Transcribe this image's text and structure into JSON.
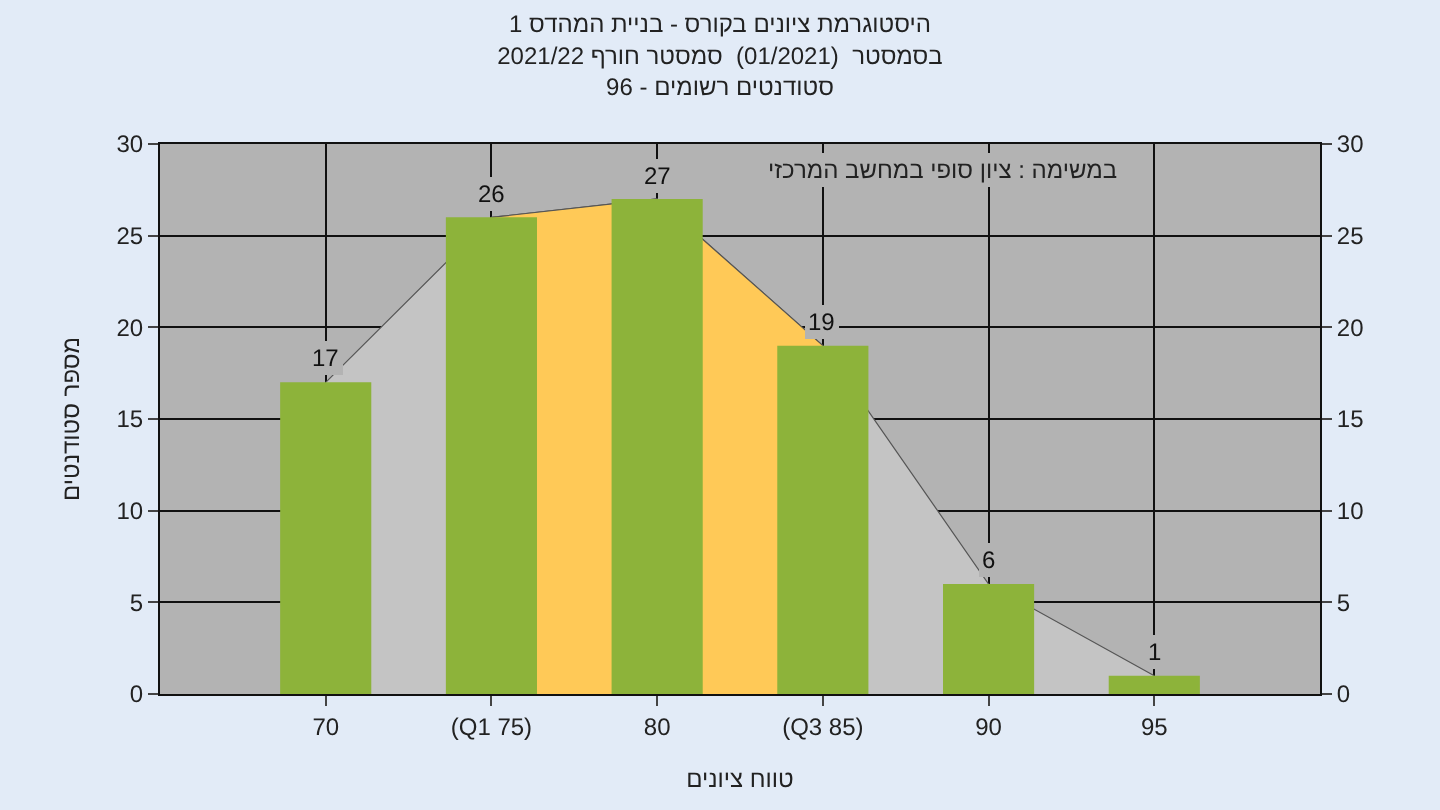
{
  "chart_data": {
    "type": "bar",
    "title": "היסטוגרמת ציונים בקורס - בניית המהדס 1\nבסמסטר  (01/2021)  סמסטר חורף 2021/22\nסטודנטים רשומים - 96",
    "xlabel": "טווח ציונים",
    "ylabel": "מספר סטודנטים",
    "annotations": [
      "במשימה : ציון סופי במחשב המרכזי"
    ],
    "categories": [
      "70",
      "(Q1 75)",
      "80",
      "(Q3 85)",
      "90",
      "95"
    ],
    "series": [
      {
        "type": "area",
        "color": "#c4c4c4",
        "values": [
          17,
          26,
          27,
          19,
          6,
          1
        ]
      },
      {
        "type": "area",
        "color": "#ffc957",
        "values": [
          null,
          26,
          27,
          19,
          null,
          null
        ]
      },
      {
        "color": "#8db33a",
        "values": [
          17,
          26,
          27,
          19,
          6,
          1
        ],
        "value_labels": [
          "17",
          "26",
          "27",
          "19",
          "6",
          "1"
        ]
      }
    ],
    "ylim": [
      0,
      30
    ],
    "yticks": [
      0,
      5,
      10,
      15,
      20,
      25,
      30
    ],
    "y2lim": [
      0,
      30
    ],
    "y2ticks": [
      0,
      5,
      10,
      15,
      20,
      25,
      30
    ],
    "grid": true
  }
}
